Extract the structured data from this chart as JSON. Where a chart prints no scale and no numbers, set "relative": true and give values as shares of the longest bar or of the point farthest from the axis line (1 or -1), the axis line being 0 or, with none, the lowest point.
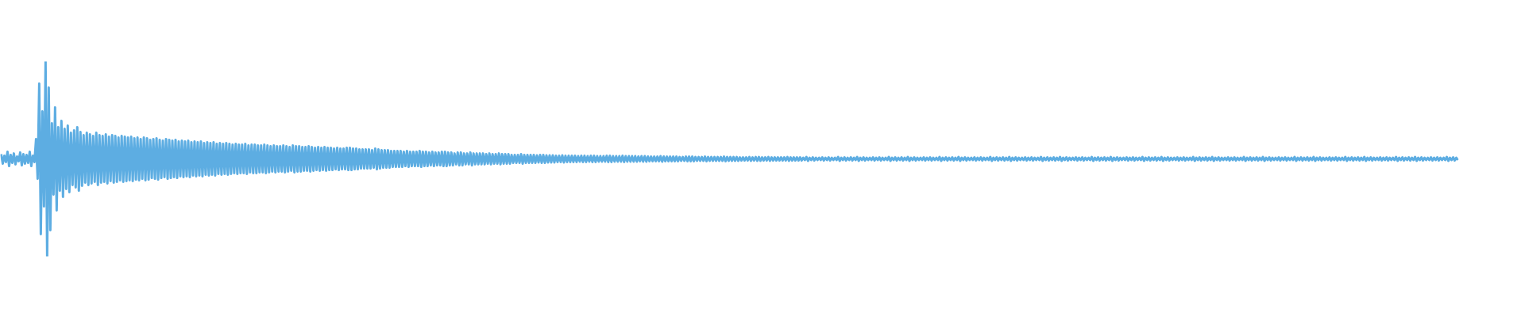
{
  "chart_data": {
    "type": "line",
    "relative": true,
    "color": "#5dade2",
    "categories": [
      null,
      null,
      null,
      null,
      null,
      null,
      null,
      null,
      null,
      null,
      null,
      null,
      null,
      null,
      null,
      null,
      null,
      null,
      null,
      null,
      null,
      null,
      null,
      null,
      null,
      null,
      null,
      null,
      null,
      null,
      null,
      null,
      null,
      null,
      null,
      null,
      null,
      null,
      null,
      null,
      null,
      null,
      null,
      null,
      null,
      null,
      null,
      null,
      null,
      null,
      null,
      null,
      null,
      null,
      null,
      null,
      null,
      null,
      null,
      null,
      null,
      null,
      null,
      null,
      null,
      null,
      null,
      null,
      null,
      null,
      null,
      null,
      null,
      null,
      null,
      null,
      null,
      null,
      null,
      null,
      null,
      null,
      null,
      null,
      null,
      null,
      null,
      null,
      null,
      null,
      null,
      null,
      null,
      null,
      null,
      null,
      null,
      null,
      null,
      null,
      null,
      null,
      null,
      null,
      null,
      null,
      null,
      null,
      null,
      null,
      null,
      null,
      null,
      null,
      null,
      null,
      null,
      null,
      null,
      null,
      null,
      null,
      null,
      null,
      null,
      null,
      null,
      null,
      null,
      null,
      null,
      null,
      null,
      null,
      null,
      null,
      null,
      null,
      null,
      null,
      null,
      null,
      null,
      null,
      null,
      null,
      null,
      null,
      null,
      null,
      null,
      null,
      null,
      null,
      null,
      null,
      null,
      null,
      null,
      null,
      null,
      null,
      null,
      null,
      null,
      null,
      null,
      null,
      null,
      null,
      null,
      null,
      null,
      null,
      null,
      null,
      null,
      null,
      null,
      null,
      null,
      null,
      null,
      null,
      null,
      null,
      null,
      null,
      null,
      null,
      null,
      null,
      null,
      null,
      null,
      null,
      null,
      null,
      null,
      null,
      null,
      null,
      null,
      null,
      null,
      null,
      null,
      null,
      null,
      null,
      null,
      null,
      null,
      null,
      null,
      null,
      null,
      null,
      null,
      null,
      null,
      null,
      null,
      null,
      null,
      null,
      null,
      null,
      null,
      null,
      null,
      null,
      null,
      null,
      null,
      null,
      null,
      null,
      null,
      null,
      null,
      null,
      null,
      null,
      null,
      null,
      null,
      null,
      null,
      null,
      null,
      null,
      null,
      null,
      null,
      null,
      null,
      null,
      null,
      null,
      null,
      null,
      null,
      null,
      null,
      null,
      null,
      null,
      null,
      null,
      null,
      null,
      null,
      null,
      null,
      null,
      null,
      null,
      null,
      null,
      null,
      null,
      null,
      null,
      null,
      null,
      null,
      null,
      null,
      null,
      null,
      null,
      null,
      null,
      null,
      null,
      null,
      null,
      null,
      null,
      null,
      null,
      null,
      null,
      null,
      null,
      null,
      null,
      null,
      null,
      null,
      null,
      null,
      null,
      null,
      null,
      null,
      null,
      null,
      null,
      null,
      null,
      null,
      null,
      null,
      null,
      null,
      null,
      null,
      null,
      null,
      null,
      null,
      null,
      null,
      null,
      null,
      null,
      null,
      null,
      null,
      null,
      null,
      null,
      null,
      null,
      null,
      null,
      null,
      null,
      null,
      null,
      null,
      null,
      null,
      null,
      null,
      null,
      null,
      null,
      null,
      null,
      null,
      null,
      null,
      null,
      null,
      null,
      null,
      null,
      null,
      null,
      null,
      null,
      null,
      null,
      null,
      null,
      null,
      null,
      null,
      null,
      null,
      null,
      null,
      null,
      null,
      null,
      null,
      null,
      null,
      null,
      null,
      null,
      null,
      null,
      null,
      null,
      null,
      null,
      null,
      null,
      null,
      null,
      null,
      null,
      null,
      null,
      null,
      null,
      null,
      null,
      null,
      null,
      null,
      null,
      null,
      null,
      null,
      null,
      null,
      null,
      null,
      null,
      null,
      null,
      null,
      null,
      null,
      null,
      null,
      null,
      null,
      null,
      null,
      null,
      null,
      null,
      null,
      null,
      null,
      null,
      null,
      null,
      null,
      null,
      null,
      null,
      null,
      null,
      null,
      null,
      null,
      null,
      null,
      null,
      null,
      null,
      null,
      null,
      null,
      null,
      null,
      null,
      null,
      null,
      null,
      null,
      null,
      null,
      null,
      null,
      null,
      null,
      null,
      null,
      null,
      null,
      null,
      null,
      null,
      null,
      null,
      null,
      null,
      null,
      null,
      null,
      null,
      null,
      null,
      null,
      null,
      null,
      null,
      null,
      null,
      null,
      null,
      null,
      null,
      null,
      null,
      null,
      null,
      null,
      null,
      null,
      null,
      null,
      null,
      null,
      null,
      null,
      null,
      null,
      null,
      null,
      null,
      null,
      null,
      null,
      null,
      null,
      null,
      null,
      null,
      null,
      null,
      null,
      null,
      null,
      null,
      null,
      null,
      null,
      null,
      null,
      null,
      null,
      null,
      null,
      null,
      null,
      null,
      null,
      null,
      null,
      null,
      null,
      null,
      null,
      null,
      null,
      null,
      null,
      null,
      null,
      null,
      null,
      null,
      null,
      null,
      null,
      null,
      null,
      null,
      null,
      null,
      null,
      null,
      null,
      null,
      null,
      null,
      null,
      null,
      null,
      null,
      null,
      null,
      null,
      null,
      null,
      null,
      null,
      null,
      null,
      null,
      null,
      null,
      null,
      null,
      null,
      null,
      null,
      null,
      null,
      null,
      null,
      null,
      null,
      null,
      null,
      null,
      null,
      null,
      null,
      null,
      null,
      null,
      null,
      null,
      null,
      null,
      null,
      null,
      null,
      null,
      null,
      null,
      null,
      null,
      null,
      null,
      null,
      null,
      null,
      null,
      null,
      null,
      null,
      null,
      null,
      null,
      null,
      null,
      null,
      null,
      null,
      null,
      null,
      null,
      null,
      null,
      null,
      null,
      null,
      null,
      null,
      null,
      null,
      null,
      null,
      null,
      null,
      null,
      null,
      null,
      null,
      null,
      null,
      null,
      null,
      null,
      null,
      null,
      null,
      null,
      null,
      null,
      null,
      null,
      null,
      null,
      null,
      null,
      null,
      null,
      null,
      null,
      null,
      null,
      null,
      null,
      null,
      null,
      null,
      null,
      null,
      null,
      null,
      null,
      null,
      null,
      null,
      null,
      null,
      null,
      null,
      null,
      null,
      null,
      null,
      null,
      null,
      null,
      null,
      null,
      null,
      null,
      null,
      null,
      null,
      null,
      null,
      null,
      null,
      null,
      null,
      null,
      null,
      null,
      null,
      null,
      null,
      null,
      null,
      null,
      null,
      null,
      null,
      null,
      null,
      null,
      null,
      null,
      null,
      null,
      null,
      null,
      null,
      null,
      null,
      null,
      null,
      null,
      null,
      null,
      null,
      null,
      null,
      null,
      null,
      null,
      null,
      null,
      null,
      null,
      null,
      null,
      null,
      null,
      null,
      null,
      null,
      null,
      null,
      null,
      null,
      null,
      null,
      null,
      null,
      null,
      null,
      null,
      null,
      null,
      null,
      null,
      null,
      null,
      null,
      null,
      null,
      null,
      null,
      null,
      null,
      null,
      null,
      null,
      null,
      null,
      null,
      null,
      null,
      null,
      null,
      null,
      null,
      null,
      null,
      null,
      null,
      null,
      null,
      null,
      null,
      null,
      null,
      null,
      null,
      null,
      null,
      null,
      null,
      null,
      null,
      null,
      null,
      null,
      null,
      null,
      null,
      null,
      null,
      null,
      null,
      null,
      null,
      null,
      null,
      null,
      null,
      null,
      null,
      null,
      null,
      null,
      null,
      null,
      null,
      null,
      null,
      null,
      null,
      null,
      null,
      null,
      null,
      null,
      null,
      null,
      null,
      null,
      null,
      null,
      null,
      null,
      null,
      null,
      null,
      null,
      null,
      null,
      null,
      null,
      null,
      null,
      null,
      null,
      null,
      null,
      null,
      null,
      null,
      null,
      null,
      null,
      null,
      null,
      null,
      null,
      null,
      null,
      null,
      null,
      null,
      null,
      null,
      null,
      null,
      null,
      null,
      null,
      null,
      null,
      null,
      null,
      null,
      null,
      null,
      null,
      null,
      null,
      null,
      null,
      null,
      null,
      null,
      null,
      null,
      null,
      null,
      null,
      null,
      null,
      null
    ],
    "values": [
      0.524,
      0.476,
      0.516,
      0.484,
      0.537,
      0.463,
      0.52,
      0.48,
      0.528,
      0.472,
      0.512,
      0.488,
      0.533,
      0.467,
      0.524,
      0.476,
      0.52,
      0.48,
      0.537,
      0.463,
      0.516,
      0.484,
      0.602,
      0.398,
      0.886,
      0.114,
      0.744,
      0.256,
      1.0,
      0.0,
      0.866,
      0.134,
      0.683,
      0.317,
      0.764,
      0.236,
      0.663,
      0.337,
      0.695,
      0.305,
      0.654,
      0.346,
      0.671,
      0.329,
      0.634,
      0.366,
      0.646,
      0.354,
      0.663,
      0.337,
      0.638,
      0.362,
      0.622,
      0.378,
      0.634,
      0.366,
      0.626,
      0.374,
      0.618,
      0.382,
      0.634,
      0.366,
      0.622,
      0.378,
      0.618,
      0.382,
      0.626,
      0.374,
      0.614,
      0.386,
      0.622,
      0.378,
      0.618,
      0.382,
      0.61,
      0.39,
      0.618,
      0.382,
      0.614,
      0.386,
      0.61,
      0.39,
      0.614,
      0.386,
      0.606,
      0.394,
      0.61,
      0.39,
      0.602,
      0.398,
      0.61,
      0.39,
      0.606,
      0.394,
      0.598,
      0.402,
      0.602,
      0.398,
      0.606,
      0.394,
      0.598,
      0.402,
      0.593,
      0.407,
      0.602,
      0.398,
      0.598,
      0.402,
      0.593,
      0.407,
      0.598,
      0.402,
      0.589,
      0.411,
      0.593,
      0.407,
      0.589,
      0.411,
      0.593,
      0.407,
      0.585,
      0.415,
      0.589,
      0.411,
      0.585,
      0.415,
      0.589,
      0.411,
      0.581,
      0.419,
      0.585,
      0.415,
      0.581,
      0.419,
      0.585,
      0.415,
      0.577,
      0.423,
      0.581,
      0.419,
      0.577,
      0.423,
      0.581,
      0.419,
      0.577,
      0.423,
      0.573,
      0.427,
      0.577,
      0.423,
      0.573,
      0.427,
      0.573,
      0.427,
      0.577,
      0.423,
      0.569,
      0.431,
      0.573,
      0.427,
      0.573,
      0.427,
      0.569,
      0.431,
      0.569,
      0.431,
      0.573,
      0.427,
      0.569,
      0.431,
      0.565,
      0.435,
      0.569,
      0.431,
      0.565,
      0.435,
      0.565,
      0.435,
      0.569,
      0.431,
      0.565,
      0.435,
      0.561,
      0.439,
      0.569,
      0.431,
      0.565,
      0.435,
      0.565,
      0.435,
      0.561,
      0.439,
      0.561,
      0.439,
      0.565,
      0.435,
      0.561,
      0.439,
      0.557,
      0.443,
      0.561,
      0.439,
      0.557,
      0.443,
      0.561,
      0.439,
      0.557,
      0.443,
      0.557,
      0.443,
      0.553,
      0.447,
      0.557,
      0.443,
      0.553,
      0.447,
      0.553,
      0.447,
      0.557,
      0.443,
      0.557,
      0.443,
      0.553,
      0.447,
      0.553,
      0.447,
      0.549,
      0.451,
      0.549,
      0.451,
      0.549,
      0.451,
      0.549,
      0.451,
      0.545,
      0.455,
      0.553,
      0.447,
      0.549,
      0.451,
      0.545,
      0.455,
      0.545,
      0.455,
      0.545,
      0.455,
      0.541,
      0.459,
      0.541,
      0.459,
      0.541,
      0.459,
      0.541,
      0.459,
      0.537,
      0.463,
      0.541,
      0.459,
      0.537,
      0.463,
      0.537,
      0.463,
      0.537,
      0.463,
      0.541,
      0.459,
      0.537,
      0.463,
      0.537,
      0.463,
      0.533,
      0.467,
      0.537,
      0.463,
      0.533,
      0.467,
      0.533,
      0.467,
      0.537,
      0.463,
      0.537,
      0.463,
      0.533,
      0.467,
      0.533,
      0.467,
      0.528,
      0.472,
      0.533,
      0.467,
      0.533,
      0.467,
      0.528,
      0.472,
      0.528,
      0.472,
      0.533,
      0.467,
      0.528,
      0.472,
      0.528,
      0.472,
      0.528,
      0.472,
      0.528,
      0.472,
      0.524,
      0.476,
      0.528,
      0.472,
      0.524,
      0.476,
      0.524,
      0.476,
      0.528,
      0.472,
      0.524,
      0.476,
      0.524,
      0.476,
      0.524,
      0.476,
      0.52,
      0.48,
      0.52,
      0.48,
      0.52,
      0.48,
      0.524,
      0.476,
      0.52,
      0.48,
      0.52,
      0.48,
      0.52,
      0.48,
      0.52,
      0.48,
      0.518,
      0.482,
      0.52,
      0.48,
      0.52,
      0.48,
      0.518,
      0.482,
      0.518,
      0.482,
      0.518,
      0.482,
      0.516,
      0.484,
      0.516,
      0.484,
      0.518,
      0.482,
      0.516,
      0.484,
      0.516,
      0.484,
      0.516,
      0.484,
      0.516,
      0.484,
      0.514,
      0.486,
      0.516,
      0.484,
      0.516,
      0.484,
      0.514,
      0.486,
      0.516,
      0.484,
      0.516,
      0.484,
      0.514,
      0.486,
      0.514,
      0.486,
      0.514,
      0.486,
      0.516,
      0.484,
      0.516,
      0.484,
      0.514,
      0.486,
      0.514,
      0.486,
      0.514,
      0.486,
      0.516,
      0.484,
      0.514,
      0.486,
      0.514,
      0.486,
      0.514,
      0.486,
      0.514,
      0.486,
      0.512,
      0.488,
      0.514,
      0.486,
      0.514,
      0.486,
      0.512,
      0.488,
      0.512,
      0.488,
      0.512,
      0.488,
      0.512,
      0.488,
      0.514,
      0.486,
      0.512,
      0.488,
      0.512,
      0.488,
      0.512,
      0.488,
      0.512,
      0.488,
      0.512,
      0.488,
      0.51,
      0.49,
      0.51,
      0.49,
      0.512,
      0.488,
      0.512,
      0.488,
      0.512,
      0.488,
      0.51,
      0.49,
      0.51,
      0.49,
      0.51,
      0.49,
      0.512,
      0.488,
      0.51,
      0.49,
      0.51,
      0.49,
      0.51,
      0.49,
      0.51,
      0.49,
      0.51,
      0.49,
      0.512,
      0.488,
      0.51,
      0.49,
      0.51,
      0.49,
      0.51,
      0.49,
      0.51,
      0.49,
      0.508,
      0.492,
      0.508,
      0.492,
      0.508,
      0.492,
      0.51,
      0.49,
      0.508,
      0.492,
      0.51,
      0.49,
      0.51,
      0.49,
      0.508,
      0.492,
      0.508,
      0.492,
      0.51,
      0.49,
      0.508,
      0.492,
      0.508,
      0.492,
      0.508,
      0.492,
      0.508,
      0.492,
      0.508,
      0.492,
      0.51,
      0.49,
      0.508,
      0.492,
      0.508,
      0.492,
      0.508,
      0.492,
      0.508,
      0.492,
      0.506,
      0.494,
      0.51,
      0.49,
      0.506,
      0.494,
      0.508,
      0.492,
      0.506,
      0.494,
      0.506,
      0.494,
      0.508,
      0.492,
      0.506,
      0.494,
      0.508,
      0.492,
      0.506,
      0.494,
      0.506,
      0.494,
      0.51,
      0.49,
      0.506,
      0.494,
      0.508,
      0.492,
      0.506,
      0.494,
      0.508,
      0.492,
      0.506,
      0.494,
      0.51,
      0.49,
      0.506,
      0.494,
      0.508,
      0.492,
      0.506,
      0.494,
      0.506,
      0.494,
      0.508,
      0.492,
      0.506,
      0.494,
      0.508,
      0.492,
      0.506,
      0.494,
      0.506,
      0.494,
      0.51,
      0.49,
      0.506,
      0.494,
      0.508,
      0.492,
      0.506,
      0.494,
      0.508,
      0.492,
      0.506,
      0.494,
      0.51,
      0.49,
      0.506,
      0.494,
      0.508,
      0.492,
      0.506,
      0.494,
      0.506,
      0.494,
      0.508,
      0.492,
      0.506,
      0.494,
      0.508,
      0.492,
      0.506,
      0.494,
      0.506,
      0.494,
      0.51,
      0.49,
      0.506,
      0.494,
      0.508,
      0.492,
      0.506,
      0.494,
      0.508,
      0.492,
      0.506,
      0.494,
      0.51,
      0.49,
      0.506,
      0.494,
      0.508,
      0.492,
      0.506,
      0.494,
      0.506,
      0.494,
      0.508,
      0.492,
      0.506,
      0.494,
      0.508,
      0.492,
      0.506,
      0.494,
      0.506,
      0.494,
      0.51,
      0.49,
      0.506,
      0.494,
      0.508,
      0.492,
      0.506,
      0.494,
      0.508,
      0.492,
      0.506,
      0.494,
      0.51,
      0.49,
      0.506,
      0.494,
      0.508,
      0.492,
      0.506,
      0.494,
      0.506,
      0.494,
      0.508,
      0.492,
      0.506,
      0.494,
      0.508,
      0.492,
      0.506,
      0.494,
      0.506,
      0.494,
      0.51,
      0.49,
      0.506,
      0.494,
      0.508,
      0.492,
      0.506,
      0.494,
      0.508,
      0.492,
      0.506,
      0.494,
      0.51,
      0.49,
      0.506,
      0.494,
      0.508,
      0.492,
      0.506,
      0.494,
      0.506,
      0.494,
      0.508,
      0.492,
      0.506,
      0.494,
      0.508,
      0.492,
      0.506,
      0.494,
      0.506,
      0.494,
      0.51,
      0.49,
      0.506,
      0.494,
      0.508,
      0.492,
      0.506,
      0.494,
      0.508,
      0.492,
      0.506,
      0.494,
      0.51,
      0.49,
      0.506,
      0.494,
      0.508,
      0.492,
      0.506,
      0.494,
      0.506,
      0.494,
      0.508,
      0.492,
      0.506,
      0.494,
      0.508,
      0.492,
      0.506,
      0.494,
      0.506,
      0.494,
      0.51,
      0.49,
      0.506,
      0.494,
      0.508,
      0.492,
      0.506,
      0.494,
      0.508,
      0.492,
      0.506,
      0.494,
      0.51,
      0.49,
      0.506,
      0.494,
      0.508,
      0.492,
      0.506,
      0.494,
      0.506,
      0.494,
      0.508,
      0.492,
      0.506,
      0.494,
      0.508,
      0.492,
      0.506,
      0.494,
      0.506,
      0.494,
      0.51,
      0.49,
      0.506,
      0.494,
      0.508,
      0.492,
      0.506,
      0.494,
      0.508,
      0.492,
      0.506,
      0.494,
      0.51,
      0.49,
      0.506,
      0.494,
      0.508,
      0.492,
      0.506,
      0.494,
      0.506,
      0.494,
      0.508,
      0.492,
      0.506,
      0.494,
      0.508,
      0.492,
      0.506,
      0.494,
      0.506,
      0.494,
      0.51,
      0.49,
      0.506,
      0.494,
      0.508,
      0.492,
      0.506,
      0.494,
      0.508,
      0.492,
      0.506,
      0.494,
      0.51,
      0.49,
      0.506,
      0.494,
      0.508,
      0.492,
      0.506,
      0.494,
      0.506,
      0.494,
      0.508,
      0.492,
      0.506,
      0.494,
      0.508,
      0.492,
      0.506,
      0.494,
      0.506,
      0.494,
      0.51,
      0.49,
      0.506,
      0.494,
      0.508,
      0.492,
      0.506,
      0.494,
      0.508,
      0.492,
      0.506,
      0.494,
      0.51,
      0.49,
      0.506,
      0.494,
      0.508,
      0.492,
      0.506,
      0.494,
      0.506,
      0.494,
      0.508,
      0.492,
      0.506,
      0.494,
      0.508,
      0.492,
      0.506,
      0.494,
      0.506,
      0.494,
      0.51,
      0.49,
      0.506,
      0.494,
      0.508,
      0.492,
      0.506,
      0.494,
      0.508,
      0.492,
      0.506,
      0.494,
      0.51,
      0.49,
      0.506,
      0.494,
      0.508,
      0.492,
      0.506,
      0.494,
      0.506,
      0.494,
      0.508,
      0.492,
      0.506,
      0.494,
      0.508,
      0.492,
      0.506,
      0.494,
      0.506,
      0.494,
      0.51,
      0.49,
      0.506,
      0.494,
      0.508,
      0.492,
      0.506,
      0.494,
      0.508,
      0.492,
      0.506,
      0.494,
      0.51,
      0.49,
      0.506,
      0.494,
      0.508,
      0.492,
      0.506,
      0.494,
      0.506,
      0.494,
      0.508,
      0.492,
      0.506,
      0.494,
      0.508,
      0.492,
      0.506,
      0.494,
      0.506,
      0.494,
      0.51,
      0.49,
      0.506,
      0.494,
      0.508,
      0.492,
      0.506,
      0.494
    ]
  }
}
